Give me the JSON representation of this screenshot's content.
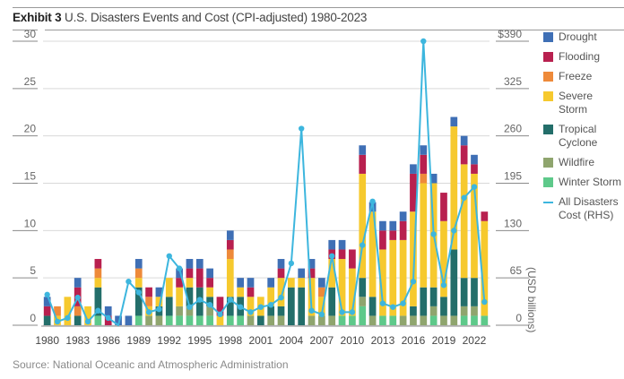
{
  "header": {
    "exhibit": "Exhibit 3",
    "title": "U.S. Disasters Events and Cost (CPI-adjusted) 1980-2023"
  },
  "source": "Source: National Oceanic and Atmospheric Administration",
  "rhs_unit_label": "(USD billions)",
  "legend": [
    {
      "label": "Drought",
      "color": "#3f6fb5",
      "kind": "swatch"
    },
    {
      "label": "Flooding",
      "color": "#b8204f",
      "kind": "swatch"
    },
    {
      "label": "Freeze",
      "color": "#ee8a3a",
      "kind": "swatch"
    },
    {
      "label": "Severe Storm",
      "color": "#f6c92e",
      "kind": "swatch"
    },
    {
      "label": "Tropical Cyclone",
      "color": "#236e6a",
      "kind": "swatch"
    },
    {
      "label": "Wildfire",
      "color": "#8fa56e",
      "kind": "swatch"
    },
    {
      "label": "Winter Storm",
      "color": "#5ec98a",
      "kind": "swatch"
    },
    {
      "label": "All Disasters Cost (RHS)",
      "color": "#3db6de",
      "kind": "line"
    }
  ],
  "chart_data": {
    "type": "bar",
    "stacked": true,
    "title": "U.S. Disasters Events and Cost (CPI-adjusted) 1980-2023",
    "xlabel": "",
    "ylabel": "Number of events",
    "y2label": "(USD billions)",
    "ylim": [
      0,
      30
    ],
    "y2lim": [
      0,
      390
    ],
    "yticks": [
      "0",
      "5",
      "10",
      "15",
      "20",
      "25",
      "30"
    ],
    "y2ticks": [
      "0",
      "65",
      "130",
      "195",
      "260",
      "325",
      "$390"
    ],
    "xticks": [
      "1980",
      "1983",
      "1986",
      "1989",
      "1992",
      "1995",
      "1998",
      "2001",
      "2004",
      "2007",
      "2010",
      "2013",
      "2016",
      "2019",
      "2022"
    ],
    "grid": true,
    "legend_position": "right",
    "categories": [
      "1980",
      "1981",
      "1982",
      "1983",
      "1984",
      "1985",
      "1986",
      "1987",
      "1988",
      "1989",
      "1990",
      "1991",
      "1992",
      "1993",
      "1994",
      "1995",
      "1996",
      "1997",
      "1998",
      "1999",
      "2000",
      "2001",
      "2002",
      "2003",
      "2004",
      "2005",
      "2006",
      "2007",
      "2008",
      "2009",
      "2010",
      "2011",
      "2012",
      "2013",
      "2014",
      "2015",
      "2016",
      "2017",
      "2018",
      "2019",
      "2020",
      "2021",
      "2022",
      "2023"
    ],
    "series": [
      {
        "name": "Winter Storm",
        "color": "#5ec98a",
        "values": [
          0,
          0,
          0,
          0,
          0,
          1,
          0,
          0,
          0,
          1,
          0,
          0,
          1,
          1,
          1,
          1,
          1,
          0,
          1,
          1,
          0,
          0,
          0,
          0,
          0,
          0,
          0,
          0,
          0,
          1,
          1,
          2,
          0,
          1,
          1,
          0,
          0,
          0,
          1,
          0,
          0,
          1,
          1,
          1
        ]
      },
      {
        "name": "Wildfire",
        "color": "#8fa56e",
        "values": [
          0,
          0,
          0,
          0,
          0,
          0,
          0,
          0,
          0,
          0,
          1,
          1,
          0,
          1,
          1,
          0,
          1,
          0,
          0,
          0,
          1,
          0,
          1,
          1,
          0,
          0,
          1,
          1,
          1,
          0,
          0,
          1,
          1,
          0,
          0,
          1,
          1,
          1,
          1,
          1,
          1,
          1,
          1,
          0
        ]
      },
      {
        "name": "Tropical Cyclone",
        "color": "#236e6a",
        "values": [
          1,
          0,
          0,
          1,
          0,
          3,
          0,
          0,
          0,
          3,
          0,
          1,
          2,
          0,
          2,
          3,
          1,
          0,
          2,
          2,
          0,
          1,
          1,
          1,
          4,
          4,
          0,
          0,
          3,
          0,
          0,
          2,
          2,
          0,
          0,
          0,
          1,
          3,
          2,
          2,
          7,
          3,
          3,
          0
        ]
      },
      {
        "name": "Severe Storm",
        "color": "#f6c92e",
        "values": [
          0,
          1,
          3,
          0,
          2,
          1,
          0,
          0,
          0,
          1,
          1,
          1,
          2,
          2,
          1,
          0,
          1,
          1,
          4,
          1,
          2,
          2,
          2,
          3,
          1,
          1,
          4,
          2,
          3,
          6,
          5,
          11,
          9,
          7,
          8,
          8,
          10,
          11,
          11,
          8,
          13,
          12,
          11,
          10
        ]
      },
      {
        "name": "Freeze",
        "color": "#ee8a3a",
        "values": [
          0,
          1,
          0,
          1,
          0,
          1,
          0,
          0,
          0,
          1,
          1,
          0,
          0,
          0,
          0,
          0,
          0,
          0,
          1,
          0,
          0,
          0,
          0,
          0,
          0,
          0,
          0,
          1,
          0,
          0,
          0,
          0,
          0,
          0,
          0,
          0,
          0,
          1,
          0,
          0,
          0,
          0,
          0,
          0
        ]
      },
      {
        "name": "Flooding",
        "color": "#b8204f",
        "values": [
          1,
          0,
          0,
          2,
          0,
          1,
          1,
          0,
          0,
          0,
          1,
          0,
          0,
          1,
          1,
          2,
          1,
          2,
          1,
          0,
          1,
          0,
          0,
          1,
          0,
          0,
          1,
          0,
          1,
          1,
          2,
          2,
          0,
          2,
          1,
          2,
          4,
          2,
          0,
          3,
          0,
          2,
          1,
          1
        ]
      },
      {
        "name": "Drought",
        "color": "#3f6fb5",
        "values": [
          1,
          0,
          0,
          1,
          0,
          0,
          1,
          1,
          1,
          1,
          0,
          1,
          0,
          1,
          1,
          1,
          1,
          0,
          1,
          1,
          1,
          0,
          1,
          1,
          0,
          1,
          1,
          1,
          1,
          1,
          0,
          1,
          1,
          1,
          1,
          1,
          1,
          1,
          1,
          0,
          1,
          1,
          1,
          0
        ]
      }
    ],
    "line_series": {
      "name": "All Disasters Cost (RHS)",
      "color": "#3db6de",
      "axis": "right",
      "values": [
        42,
        5,
        10,
        38,
        5,
        20,
        10,
        0,
        60,
        45,
        18,
        22,
        95,
        78,
        25,
        35,
        28,
        15,
        35,
        25,
        18,
        25,
        28,
        38,
        85,
        270,
        20,
        15,
        95,
        18,
        18,
        110,
        170,
        30,
        25,
        30,
        60,
        390,
        125,
        55,
        130,
        175,
        190,
        32
      ]
    }
  }
}
